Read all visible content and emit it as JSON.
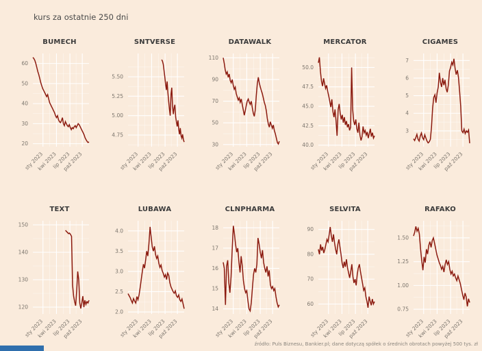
{
  "page": {
    "title": "kurs za ostatnie 250 dni",
    "footer": "źródło: Puls Biznesu, Bankier.pl; dane dotyczą spółek o średnich obrotach powyżej 500 tys. zł",
    "colors": {
      "background": "#faebdc",
      "line": "#8b1a0f",
      "grid": "#ffffff",
      "accent_bar": "#2f6fad",
      "title_text": "#3b3b3b",
      "tick_text": "#7b756d"
    }
  },
  "chart_data": [
    {
      "type": "line",
      "title": "BUMECH",
      "ylim": [
        18.5,
        65
      ],
      "yticks": [
        60,
        50,
        40,
        30,
        20
      ],
      "ytick_labels": [
        "60",
        "50",
        "40",
        "30",
        "20"
      ],
      "xticks": [
        "sty 2023",
        "kwi 2023",
        "lip 2023",
        "paź 2023"
      ],
      "xtick_pos": [
        0.18,
        0.42,
        0.66,
        0.88
      ],
      "x_start": 0,
      "values": [
        63,
        62.5,
        61.5,
        60,
        58,
        56,
        54.5,
        52.5,
        50.5,
        49,
        47.5,
        46.5,
        45.5,
        44.5,
        43.5,
        44.5,
        42.5,
        40.5,
        39.5,
        38.5,
        37.5,
        36.5,
        35.5,
        34,
        33,
        34,
        32,
        31,
        30.5,
        31.5,
        33,
        30,
        29,
        31,
        30,
        29,
        28.5,
        29.5,
        28,
        27,
        28,
        27.5,
        28.5,
        29,
        28,
        29,
        30,
        29.5,
        28.5,
        27.5,
        26.5,
        25.5,
        24.5,
        23,
        22,
        21.2,
        20.6,
        20.9
      ]
    },
    {
      "type": "line",
      "title": "SNTVERSE",
      "ylim": [
        4.6,
        5.8
      ],
      "yticks": [
        5.5,
        5.25,
        5.0,
        4.75
      ],
      "ytick_labels": [
        "5.50",
        "5.25",
        "5.00",
        "4.75"
      ],
      "xticks": [
        "sty 2023",
        "kwi 2023",
        "lip 2023",
        "paź 2023"
      ],
      "xtick_pos": [
        0.18,
        0.42,
        0.66,
        0.88
      ],
      "x_start": 0.6,
      "values": [
        5.72,
        5.7,
        5.66,
        5.58,
        5.5,
        5.4,
        5.33,
        5.44,
        5.3,
        5.18,
        5.08,
        5.0,
        5.28,
        5.36,
        5.12,
        5.02,
        5.1,
        5.14,
        4.98,
        4.92,
        4.86,
        4.94,
        4.82,
        4.76,
        4.84,
        4.74,
        4.71,
        4.76,
        4.69,
        4.66
      ]
    },
    {
      "type": "line",
      "title": "DATAWALK",
      "ylim": [
        28,
        114
      ],
      "yticks": [
        110,
        90,
        70,
        50,
        30
      ],
      "ytick_labels": [
        "110",
        "90",
        "70",
        "50",
        "30"
      ],
      "xticks": [
        "sty 2023",
        "kwi 2023",
        "lip 2023",
        "paź 2023"
      ],
      "xtick_pos": [
        0.18,
        0.42,
        0.66,
        0.88
      ],
      "x_start": 0,
      "values": [
        110,
        105,
        99,
        95,
        97,
        92,
        95,
        89,
        87,
        90,
        85,
        81,
        83,
        77,
        74,
        71,
        73,
        69,
        72,
        67,
        62,
        57,
        61,
        66,
        70,
        72,
        69,
        67,
        70,
        64,
        59,
        56,
        62,
        75,
        86,
        92,
        87,
        83,
        80,
        77,
        73,
        69,
        66,
        61,
        54,
        49,
        46,
        51,
        48,
        45,
        48,
        43,
        40,
        36,
        32,
        30.5,
        33
      ]
    },
    {
      "type": "line",
      "title": "MERCATOR",
      "ylim": [
        39.8,
        51.8
      ],
      "yticks": [
        50.0,
        47.5,
        45.0,
        42.5,
        40.0
      ],
      "ytick_labels": [
        "50.0",
        "47.5",
        "45.0",
        "42.5",
        "40.0"
      ],
      "xticks": [
        "sty 2023",
        "kwi 2023",
        "lip 2023",
        "paź 2023"
      ],
      "xtick_pos": [
        0.18,
        0.42,
        0.66,
        0.88
      ],
      "x_start": 0,
      "values": [
        50.6,
        51.3,
        49.5,
        48.2,
        47.6,
        48.6,
        47.9,
        47.3,
        47.7,
        46.9,
        46.3,
        45.6,
        44.9,
        45.9,
        44.3,
        43.6,
        44.6,
        43.1,
        41.2,
        44.6,
        45.3,
        44.1,
        43.3,
        43.9,
        42.9,
        43.6,
        42.6,
        43.1,
        42.3,
        42.7,
        41.9,
        42.3,
        50.0,
        44.6,
        43.1,
        42.6,
        43.3,
        42.1,
        41.6,
        42.9,
        41.3,
        40.6,
        41.1,
        42.4,
        41.6,
        41.9,
        41.3,
        41.7,
        40.9,
        41.5,
        42.1,
        41.1,
        41.6,
        40.9,
        41.2
      ]
    },
    {
      "type": "line",
      "title": "CIGAMES",
      "ylim": [
        2.1,
        7.4
      ],
      "yticks": [
        7,
        6,
        5,
        4,
        3
      ],
      "ytick_labels": [
        "7",
        "6",
        "5",
        "4",
        "3"
      ],
      "xticks": [
        "sty 2023",
        "kwi 2023",
        "lip 2023",
        "paź 2023"
      ],
      "xtick_pos": [
        0.18,
        0.42,
        0.66,
        0.88
      ],
      "x_start": 0,
      "values": [
        2.55,
        2.45,
        2.62,
        2.8,
        2.52,
        2.42,
        2.7,
        2.88,
        2.62,
        2.5,
        2.78,
        2.6,
        2.42,
        2.32,
        2.38,
        2.52,
        3.2,
        4.3,
        4.9,
        5.05,
        4.6,
        5.15,
        5.5,
        6.3,
        5.75,
        5.5,
        6.0,
        5.6,
        5.9,
        5.4,
        5.2,
        5.6,
        6.4,
        6.6,
        6.9,
        6.75,
        7.1,
        6.55,
        6.2,
        6.45,
        6.05,
        5.3,
        4.4,
        3.0,
        2.9,
        3.1,
        2.85,
        3.0,
        2.92,
        3.05,
        2.3
      ]
    },
    {
      "type": "line",
      "title": "TEXT",
      "ylim": [
        117.5,
        151.5
      ],
      "yticks": [
        150,
        140,
        130,
        120
      ],
      "ytick_labels": [
        "150",
        "140",
        "130",
        "120"
      ],
      "xticks": [
        "sty 2023",
        "kwi 2023",
        "lip 2023",
        "paź 2023"
      ],
      "xtick_pos": [
        0.18,
        0.42,
        0.66,
        0.88
      ],
      "x_start": 0.58,
      "values": [
        148,
        147.6,
        147.2,
        146.8,
        147.0,
        146.5,
        145.8,
        128,
        124,
        122,
        120.5,
        126,
        133,
        130,
        121.5,
        119.5,
        121.5,
        124,
        120,
        122.5,
        121,
        122,
        121.5,
        122.5
      ]
    },
    {
      "type": "line",
      "title": "LUBAWA",
      "ylim": [
        1.95,
        4.25
      ],
      "yticks": [
        4.0,
        3.5,
        3.0,
        2.5,
        2.0
      ],
      "ytick_labels": [
        "4.0",
        "3.5",
        "3.0",
        "2.5",
        "2.0"
      ],
      "xticks": [
        "sty 2023",
        "kwi 2023",
        "lip 2023",
        "paź 2023"
      ],
      "xtick_pos": [
        0.18,
        0.42,
        0.66,
        0.88
      ],
      "x_start": 0,
      "values": [
        2.45,
        2.4,
        2.35,
        2.28,
        2.22,
        2.33,
        2.27,
        2.22,
        2.38,
        2.3,
        2.42,
        2.6,
        2.8,
        3.0,
        3.18,
        3.08,
        3.28,
        3.5,
        3.38,
        3.68,
        4.1,
        3.85,
        3.6,
        3.5,
        3.62,
        3.42,
        3.32,
        3.38,
        3.2,
        3.1,
        3.16,
        3.02,
        2.95,
        2.86,
        2.92,
        2.8,
        2.96,
        2.9,
        2.72,
        2.62,
        2.56,
        2.5,
        2.46,
        2.52,
        2.4,
        2.36,
        2.42,
        2.3,
        2.26,
        2.32,
        2.2,
        2.08
      ]
    },
    {
      "type": "line",
      "title": "CLNPHARMA",
      "ylim": [
        13.75,
        18.35
      ],
      "yticks": [
        18,
        17,
        16,
        15,
        14
      ],
      "ytick_labels": [
        "18",
        "17",
        "16",
        "15",
        "14"
      ],
      "xticks": [
        "sty 2023",
        "kwi 2023",
        "lip 2023",
        "paź 2023"
      ],
      "xtick_pos": [
        0.18,
        0.42,
        0.66,
        0.88
      ],
      "x_start": 0,
      "values": [
        16.3,
        16.0,
        14.2,
        16.1,
        16.4,
        15.3,
        14.8,
        15.6,
        16.9,
        18.1,
        17.7,
        17.2,
        16.8,
        17.0,
        16.3,
        15.8,
        16.6,
        16.1,
        15.4,
        15.0,
        14.8,
        14.9,
        14.4,
        14.0,
        13.9,
        14.3,
        15.0,
        15.7,
        16.0,
        15.8,
        16.2,
        17.5,
        17.2,
        16.8,
        16.5,
        16.9,
        16.3,
        16.0,
        15.8,
        16.1,
        15.6,
        15.9,
        15.2,
        15.0,
        15.1,
        14.9,
        15.0,
        14.6,
        14.3,
        14.1,
        14.2
      ]
    },
    {
      "type": "line",
      "title": "SELVITA",
      "ylim": [
        56,
        93.5
      ],
      "yticks": [
        90,
        80,
        70,
        60
      ],
      "ytick_labels": [
        "90",
        "80",
        "70",
        "60"
      ],
      "xticks": [
        "sty 2023",
        "kwi 2023",
        "lip 2023",
        "paź 2023"
      ],
      "xtick_pos": [
        0.18,
        0.42,
        0.66,
        0.88
      ],
      "x_start": 0,
      "values": [
        82,
        80,
        84,
        81.5,
        83,
        80.5,
        82,
        84,
        86,
        85,
        88,
        91,
        87.5,
        85,
        88,
        84.5,
        82,
        80,
        84,
        86,
        83,
        80,
        76.5,
        74.5,
        77,
        75,
        78,
        74.5,
        72.5,
        70.5,
        73,
        76,
        71,
        68.5,
        70,
        67.5,
        72,
        74.5,
        76,
        73,
        70.5,
        68,
        65.5,
        66.5,
        63,
        61,
        58.5,
        63,
        61,
        59.5,
        62,
        60,
        61
      ]
    },
    {
      "type": "line",
      "title": "RAFAKO",
      "ylim": [
        0.7,
        1.68
      ],
      "yticks": [
        1.5,
        1.25,
        1.0,
        0.75
      ],
      "ytick_labels": [
        "1.50",
        "1.25",
        "1.00",
        "0.75"
      ],
      "xticks": [
        "sty 2023",
        "kwi 2023",
        "lip 2023",
        "paź 2023"
      ],
      "xtick_pos": [
        0.18,
        0.42,
        0.66,
        0.88
      ],
      "x_start": 0,
      "values": [
        1.52,
        1.56,
        1.62,
        1.57,
        1.6,
        1.54,
        1.38,
        1.26,
        1.16,
        1.3,
        1.24,
        1.38,
        1.33,
        1.42,
        1.46,
        1.4,
        1.47,
        1.5,
        1.44,
        1.38,
        1.32,
        1.28,
        1.24,
        1.21,
        1.17,
        1.2,
        1.14,
        1.22,
        1.27,
        1.22,
        1.25,
        1.17,
        1.12,
        1.15,
        1.1,
        1.12,
        1.08,
        1.05,
        1.1,
        1.06,
        1.02,
        0.96,
        0.9,
        0.85,
        0.92,
        0.88,
        0.78,
        0.86,
        0.82
      ]
    }
  ]
}
